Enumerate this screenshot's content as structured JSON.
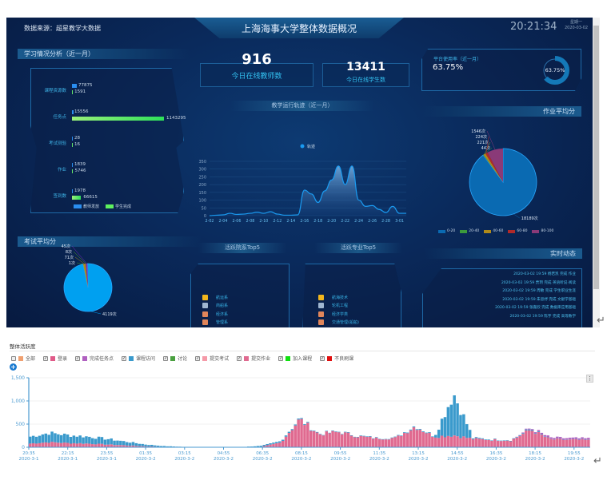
{
  "dashboard": {
    "source": "数据来源：超星教学大数据",
    "title": "上海海事大学整体数据概况",
    "time": "20:21:34",
    "weekday": "星期一",
    "date": "2020-03-02",
    "study": {
      "title": "学习情况分析（近一月）",
      "rows": [
        {
          "label": "课程资源数",
          "teacher": "77875",
          "student": "1591"
        },
        {
          "label": "任务点",
          "teacher": "15556",
          "student": "1143295"
        },
        {
          "label": "考试测验",
          "teacher": "28",
          "student": "16"
        },
        {
          "label": "作业",
          "teacher": "1839",
          "student": "5746"
        },
        {
          "label": "签到数",
          "teacher": "1978",
          "student": "66615"
        }
      ],
      "legend": [
        "教师发放",
        "学生完成"
      ]
    },
    "teachers_online": {
      "value": "916",
      "label": "今日在线教师数"
    },
    "students_online": {
      "value": "13411",
      "label": "今日在线学生数"
    },
    "usage": {
      "label": "平台使用率（近一月）",
      "value": "63.75%",
      "fraction": 0.6375
    },
    "trend": {
      "title": "教学运行轨迹（近一月）",
      "chart_data": {
        "type": "area",
        "legend": [
          "轨迹"
        ],
        "x": [
          "2-02",
          "2-03",
          "2-04",
          "2-05",
          "2-06",
          "2-07",
          "2-08",
          "2-09",
          "2-10",
          "2-11",
          "2-12",
          "2-13",
          "2-14",
          "2-15",
          "2-16",
          "2-17",
          "2-18",
          "2-19",
          "2-20",
          "2-21",
          "2-22",
          "2-23",
          "2-24",
          "2-25",
          "2-26",
          "2-27",
          "2-28",
          "2-29",
          "3-01",
          "3-02"
        ],
        "x_ticks": [
          "2-02",
          "2-04",
          "2-06",
          "2-08",
          "2-10",
          "2-12",
          "2-14",
          "2-16",
          "2-18",
          "2-20",
          "2-22",
          "2-24",
          "2-26",
          "2-28",
          "3-01"
        ],
        "values": [
          0,
          3,
          5,
          15,
          8,
          10,
          15,
          22,
          15,
          25,
          10,
          3,
          3,
          5,
          165,
          140,
          85,
          160,
          230,
          320,
          200,
          320,
          100,
          60,
          65,
          40,
          20,
          60,
          15,
          15
        ],
        "y_ticks": [
          "0",
          "50",
          "100",
          "150",
          "200",
          "250",
          "300",
          "350"
        ],
        "ylim": [
          0,
          350
        ]
      }
    },
    "homework": {
      "title": "作业平均分",
      "chart_data": {
        "type": "pie",
        "categories": [
          "0-20",
          "20-40",
          "40-60",
          "60-80",
          "80-100"
        ],
        "values": [
          18189,
          44,
          221,
          224,
          1546
        ],
        "labels": [
          "18189次",
          "44次",
          "221次",
          "224次",
          "1546次"
        ],
        "colors": [
          "#0a6ab2",
          "#3c9a3c",
          "#b08a1a",
          "#b02a2a",
          "#8a3a78"
        ]
      }
    },
    "exam": {
      "title": "考试平均分",
      "chart_data": {
        "type": "pie",
        "categories": [
          "0-20",
          "20-40",
          "40-60",
          "60-80",
          "80-100"
        ],
        "values": [
          4119,
          1,
          71,
          8,
          45
        ],
        "labels": [
          "4119次",
          "1次",
          "71次",
          "8次",
          "45次"
        ],
        "colors": [
          "#00a0f0",
          "#3c9a3c",
          "#b08a1a",
          "#5a9a2a",
          "#7a2ac0"
        ]
      }
    },
    "top_college": {
      "title": "活跃院系Top5",
      "items": [
        "航运系",
        "商船系",
        "经济系",
        "管理系",
        "计算机系"
      ]
    },
    "top_major": {
      "title": "活跃专业Top5",
      "items": [
        "航海技术",
        "轮机工程",
        "经济学类",
        "交通管理(船舶)",
        "法学(海商法)"
      ]
    },
    "medal_colors": [
      "#f2b61c",
      "#9fb6d0",
      "#e0855a",
      "#e0855a",
      "#e0855a"
    ],
    "realtime": {
      "title": "实时动态",
      "rows": [
        "2020-03-02 19:59 杨若凯 完成 作业",
        "2020-03-02 19:59 贾玥 完成 英语听说·阅读",
        "2020-03-02 19:59 周敏 完成 学生职业生涯",
        "2020-03-02 19:59 朱思妤 完成 文献学基础",
        "2020-03-02 19:59 张嘉欣 完成 数据库应用基础",
        "2020-03-02 19:59 陈宇 完成 高等数学"
      ]
    }
  },
  "activity": {
    "title": "整体活跃度",
    "legend": [
      {
        "name": "全部",
        "color": "#f0a070",
        "checked": false
      },
      {
        "name": "登录",
        "color": "#e05a88",
        "checked": true
      },
      {
        "name": "完成任务点",
        "color": "#b060c0",
        "checked": true
      },
      {
        "name": "课程访问",
        "color": "#3a9acc",
        "checked": true
      },
      {
        "name": "讨论",
        "color": "#4aa040",
        "checked": true
      },
      {
        "name": "提交考试",
        "color": "#f59aa8",
        "checked": true
      },
      {
        "name": "提交作业",
        "color": "#e06a90",
        "checked": true
      },
      {
        "name": "加入课程",
        "color": "#10e010",
        "checked": true
      },
      {
        "name": "不良刷课",
        "color": "#e01010",
        "checked": true
      }
    ],
    "chart_data": {
      "type": "bar",
      "stacked": true,
      "ylim": [
        0,
        1500
      ],
      "y_ticks": [
        "0",
        "500",
        "1,000",
        "1,500"
      ],
      "x_ticks": [
        [
          "20:35",
          "2020-3-1"
        ],
        [
          "22:15",
          "2020-3-1"
        ],
        [
          "23:55",
          "2020-3-1"
        ],
        [
          "01:35",
          "2020-3-2"
        ],
        [
          "03:15",
          "2020-3-2"
        ],
        [
          "04:55",
          "2020-3-2"
        ],
        [
          "06:35",
          "2020-3-2"
        ],
        [
          "08:15",
          "2020-3-2"
        ],
        [
          "09:55",
          "2020-3-2"
        ],
        [
          "11:35",
          "2020-3-2"
        ],
        [
          "13:15",
          "2020-3-2"
        ],
        [
          "14:55",
          "2020-3-2"
        ],
        [
          "16:35",
          "2020-3-2"
        ],
        [
          "18:15",
          "2020-3-2"
        ],
        [
          "19:55",
          "2020-3-2"
        ]
      ],
      "x": [
        "20:35",
        "21:25",
        "22:15",
        "23:05",
        "23:55",
        "00:45",
        "01:35",
        "02:25",
        "03:15",
        "04:05",
        "04:55",
        "05:45",
        "06:35",
        "07:25",
        "08:15",
        "09:05",
        "09:55",
        "10:45",
        "11:35",
        "12:25",
        "13:15",
        "14:05",
        "14:55",
        "15:45",
        "16:35",
        "17:25",
        "18:15",
        "19:05",
        "19:55",
        "20:20"
      ],
      "series": [
        {
          "name": "登录",
          "color": "#e06a90",
          "values": [
            80,
            110,
            90,
            80,
            60,
            40,
            20,
            8,
            3,
            2,
            2,
            2,
            10,
            100,
            600,
            280,
            330,
            240,
            190,
            200,
            450,
            230,
            260,
            180,
            160,
            150,
            380,
            170,
            160,
            150
          ]
        },
        {
          "name": "课程访问",
          "color": "#3a9acc",
          "values": [
            150,
            200,
            170,
            150,
            120,
            80,
            40,
            15,
            5,
            3,
            2,
            3,
            20,
            30,
            20,
            10,
            10,
            10,
            10,
            10,
            20,
            10,
            900,
            20,
            10,
            10,
            20,
            5,
            5,
            5
          ]
        },
        {
          "name": "完成任务点",
          "color": "#b060c0",
          "values": [
            0,
            0,
            0,
            0,
            0,
            0,
            0,
            0,
            0,
            0,
            0,
            0,
            0,
            0,
            0,
            0,
            0,
            0,
            0,
            0,
            0,
            0,
            0,
            0,
            0,
            0,
            20,
            30,
            30,
            30
          ]
        }
      ]
    }
  }
}
